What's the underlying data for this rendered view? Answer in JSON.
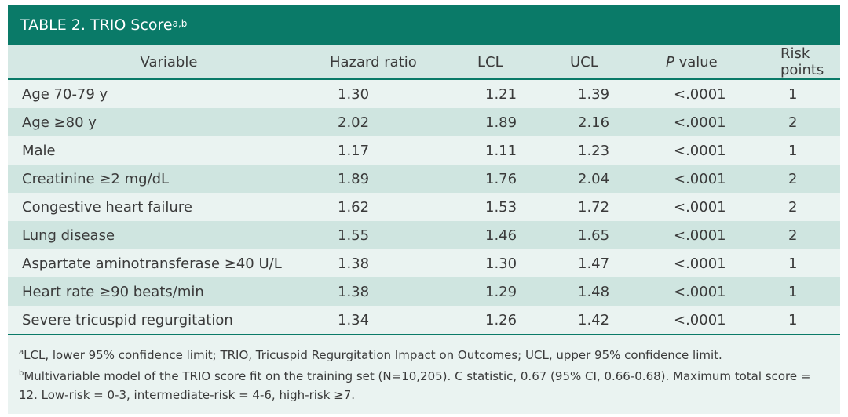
{
  "title": {
    "label": "TABLE 2.",
    "name": "TRIO Score",
    "superscript": "a,b"
  },
  "columns": [
    "Variable",
    "Hazard ratio",
    "LCL",
    "UCL",
    "value",
    "Risk points"
  ],
  "p_italic": "P",
  "rows": [
    {
      "variable": "Age 70-79 y",
      "hr": "1.30",
      "lcl": "1.21",
      "ucl": "1.39",
      "p": "<.0001",
      "points": "1"
    },
    {
      "variable": "Age ≥80 y",
      "hr": "2.02",
      "lcl": "1.89",
      "ucl": "2.16",
      "p": "<.0001",
      "points": "2"
    },
    {
      "variable": "Male",
      "hr": "1.17",
      "lcl": "1.11",
      "ucl": "1.23",
      "p": "<.0001",
      "points": "1"
    },
    {
      "variable": "Creatinine ≥2 mg/dL",
      "hr": "1.89",
      "lcl": "1.76",
      "ucl": "2.04",
      "p": "<.0001",
      "points": "2"
    },
    {
      "variable": "Congestive heart failure",
      "hr": "1.62",
      "lcl": "1.53",
      "ucl": "1.72",
      "p": "<.0001",
      "points": "2"
    },
    {
      "variable": "Lung disease",
      "hr": "1.55",
      "lcl": "1.46",
      "ucl": "1.65",
      "p": "<.0001",
      "points": "2"
    },
    {
      "variable": "Aspartate aminotransferase ≥40 U/L",
      "hr": "1.38",
      "lcl": "1.30",
      "ucl": "1.47",
      "p": "<.0001",
      "points": "1"
    },
    {
      "variable": "Heart rate ≥90 beats/min",
      "hr": "1.38",
      "lcl": "1.29",
      "ucl": "1.48",
      "p": "<.0001",
      "points": "1"
    },
    {
      "variable": "Severe tricuspid regurgitation",
      "hr": "1.34",
      "lcl": "1.26",
      "ucl": "1.42",
      "p": "<.0001",
      "points": "1"
    }
  ],
  "footnotes": [
    {
      "mark": "a",
      "text": "LCL, lower 95% confidence limit; TRIO, Tricuspid Regurgitation Impact on Outcomes; UCL, upper 95% confidence limit."
    },
    {
      "mark": "b",
      "text": "Multivariable model of the TRIO score fit on the training set (N=10,205). C statistic, 0.67 (95% CI, 0.66-0.68). Maximum total score = 12. Low-risk = 0-3, intermediate-risk = 4-6, high-risk ≥7."
    }
  ],
  "colors": {
    "header_bg": "#0a7a68",
    "row_light": "#eaf3f1",
    "row_dark": "#cfe5e0"
  }
}
